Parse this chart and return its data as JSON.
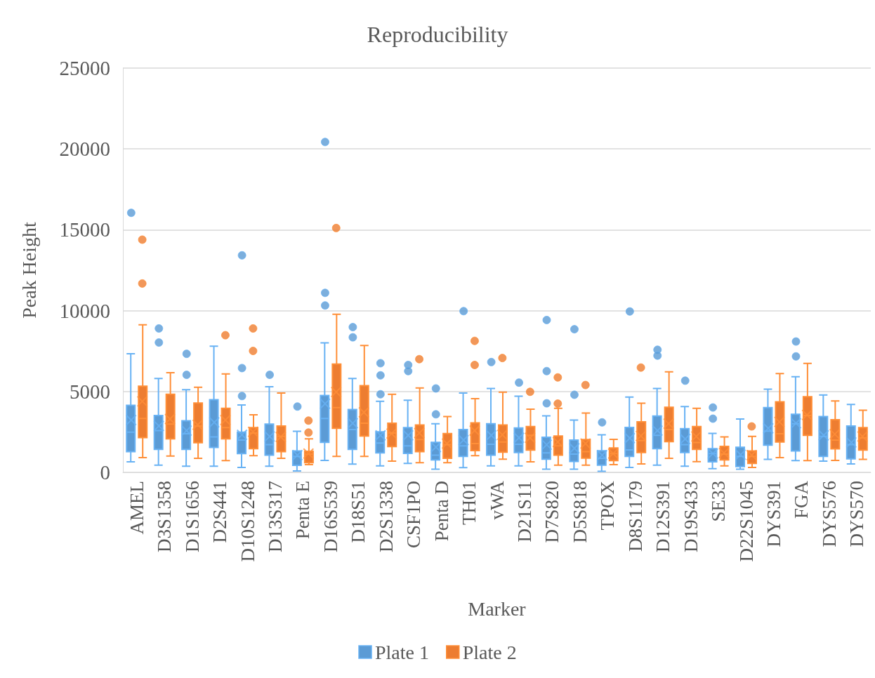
{
  "chart_data": {
    "type": "box",
    "title": "Reproducibility",
    "xlabel": "Marker",
    "ylabel": "Peak Height",
    "categories": [
      "AMEL",
      "D3S1358",
      "D1S1656",
      "D2S441",
      "D10S1248",
      "D13S317",
      "Penta E",
      "D16S539",
      "D18S51",
      "D2S1338",
      "CSF1PO",
      "Penta D",
      "TH01",
      "vWA",
      "D21S11",
      "D7S820",
      "D5S818",
      "TPOX",
      "D8S1179",
      "D12S391",
      "D19S433",
      "SE33",
      "D22S1045",
      "DYS391",
      "FGA",
      "DYS576",
      "DYS570"
    ],
    "ylim": [
      0,
      25000
    ],
    "yticks": [
      0,
      5000,
      10000,
      15000,
      20000,
      25000
    ],
    "grid": "y",
    "legend": "bottom",
    "series": [
      {
        "name": "Plate 1",
        "color": "#5b9bd5",
        "boxes": [
          {
            "low": 650,
            "q1": 1275,
            "median": 2480,
            "q3": 4140,
            "high": 7330,
            "mean": 3230,
            "outliers": [
              16050
            ]
          },
          {
            "low": 450,
            "q1": 1420,
            "median": 2580,
            "q3": 3520,
            "high": 5810,
            "mean": 2870,
            "outliers": [
              8900,
              8030
            ]
          },
          {
            "low": 380,
            "q1": 1420,
            "median": 2390,
            "q3": 3190,
            "high": 5115,
            "mean": 2580,
            "outliers": [
              7330,
              6030
            ]
          },
          {
            "low": 380,
            "q1": 1540,
            "median": 2190,
            "q3": 4490,
            "high": 7800,
            "mean": 3090
          },
          {
            "low": 300,
            "q1": 1160,
            "median": 2000,
            "q3": 2480,
            "high": 4170,
            "mean": 2320,
            "outliers": [
              13420,
              6450,
              4720
            ]
          },
          {
            "low": 380,
            "q1": 1060,
            "median": 1710,
            "q3": 2985,
            "high": 5290,
            "mean": 2220,
            "outliers": [
              6030
            ]
          },
          {
            "low": 90,
            "q1": 435,
            "median": 985,
            "q3": 1320,
            "high": 2540,
            "mean": 1060,
            "outliers": [
              4070
            ]
          },
          {
            "low": 740,
            "q1": 1855,
            "median": 3330,
            "q3": 4750,
            "high": 8010,
            "mean": 4240,
            "outliers": [
              20430,
              11100,
              10320
            ]
          },
          {
            "low": 510,
            "q1": 1420,
            "median": 2650,
            "q3": 3880,
            "high": 5800,
            "mean": 3040,
            "outliers": [
              8980,
              8350
            ]
          },
          {
            "low": 405,
            "q1": 1200,
            "median": 1810,
            "q3": 2510,
            "high": 4390,
            "mean": 2290,
            "outliers": [
              6750,
              6000,
              4830
            ]
          },
          {
            "low": 550,
            "q1": 1170,
            "median": 1640,
            "q3": 2770,
            "high": 4460,
            "mean": 2290,
            "outliers": [
              6640,
              6260
            ]
          },
          {
            "low": 190,
            "q1": 770,
            "median": 1060,
            "q3": 1855,
            "high": 3010,
            "mean": 1565,
            "outliers": [
              5190,
              3590
            ]
          },
          {
            "low": 290,
            "q1": 985,
            "median": 1640,
            "q3": 2650,
            "high": 4900,
            "mean": 2000,
            "outliers": [
              9970
            ]
          },
          {
            "low": 405,
            "q1": 1060,
            "median": 1740,
            "q3": 3010,
            "high": 5190,
            "mean": 2290,
            "outliers": [
              6820
            ]
          },
          {
            "low": 405,
            "q1": 1230,
            "median": 1740,
            "q3": 2750,
            "high": 4710,
            "mean": 2140,
            "outliers": [
              5550
            ]
          },
          {
            "low": 190,
            "q1": 810,
            "median": 1200,
            "q3": 2170,
            "high": 3490,
            "mean": 1710,
            "outliers": [
              9420,
              6260,
              4270
            ]
          },
          {
            "low": 190,
            "q1": 670,
            "median": 1130,
            "q3": 2000,
            "high": 3230,
            "mean": 1490,
            "outliers": [
              8850,
              4800
            ]
          },
          {
            "low": 70,
            "q1": 450,
            "median": 870,
            "q3": 1330,
            "high": 2320,
            "mean": 1060,
            "outliers": [
              3090
            ]
          },
          {
            "low": 305,
            "q1": 985,
            "median": 1390,
            "q3": 2780,
            "high": 4650,
            "mean": 2115,
            "outliers": [
              9950
            ]
          },
          {
            "low": 450,
            "q1": 1460,
            "median": 2290,
            "q3": 3480,
            "high": 5190,
            "mean": 2580,
            "outliers": [
              7580,
              7220
            ]
          },
          {
            "low": 375,
            "q1": 1230,
            "median": 1710,
            "q3": 2700,
            "high": 4070,
            "mean": 2060,
            "outliers": [
              5670
            ]
          },
          {
            "low": 230,
            "q1": 650,
            "median": 1160,
            "q3": 1460,
            "high": 2410,
            "mean": 1160,
            "outliers": [
              4010,
              3320
            ]
          },
          {
            "low": 190,
            "q1": 360,
            "median": 985,
            "q3": 1550,
            "high": 3300,
            "mean": 1090
          },
          {
            "low": 800,
            "q1": 1680,
            "median": 2550,
            "q3": 4000,
            "high": 5140,
            "mean": 2720
          },
          {
            "low": 725,
            "q1": 1320,
            "median": 3010,
            "q3": 3590,
            "high": 5910,
            "mean": 3040,
            "outliers": [
              8090,
              7170
            ]
          },
          {
            "low": 695,
            "q1": 985,
            "median": 2220,
            "q3": 3450,
            "high": 4780,
            "mean": 2290
          },
          {
            "low": 520,
            "q1": 840,
            "median": 1710,
            "q3": 2870,
            "high": 4200,
            "mean": 1850
          }
        ]
      },
      {
        "name": "Plate 2",
        "color": "#ed7d31",
        "boxes": [
          {
            "low": 910,
            "q1": 2145,
            "median": 3330,
            "q3": 5330,
            "high": 9130,
            "mean": 4390,
            "outliers": [
              14390,
              11680
            ]
          },
          {
            "low": 1010,
            "q1": 2070,
            "median": 2985,
            "q3": 4830,
            "high": 6160,
            "mean": 3300
          },
          {
            "low": 870,
            "q1": 1830,
            "median": 2870,
            "q3": 4290,
            "high": 5260,
            "mean": 2940
          },
          {
            "low": 725,
            "q1": 2070,
            "median": 2770,
            "q3": 3960,
            "high": 6090,
            "mean": 3230,
            "outliers": [
              8480
            ]
          },
          {
            "low": 1030,
            "q1": 1460,
            "median": 2430,
            "q3": 2770,
            "high": 3560,
            "mean": 2510,
            "outliers": [
              8900,
              7510
            ]
          },
          {
            "low": 870,
            "q1": 1275,
            "median": 2220,
            "q3": 2870,
            "high": 4900,
            "mean": 2190
          },
          {
            "low": 480,
            "q1": 595,
            "median": 1130,
            "q3": 1300,
            "high": 2070,
            "mean": 1160,
            "outliers": [
              3200,
              2460
            ]
          },
          {
            "low": 985,
            "q1": 2720,
            "median": 4000,
            "q3": 6690,
            "high": 9780,
            "mean": 4970,
            "outliers": [
              15110
            ]
          },
          {
            "low": 985,
            "q1": 2250,
            "median": 3040,
            "q3": 5360,
            "high": 7840,
            "mean": 3710
          },
          {
            "low": 695,
            "q1": 1590,
            "median": 2430,
            "q3": 3040,
            "high": 4830,
            "mean": 2400
          },
          {
            "low": 595,
            "q1": 1275,
            "median": 2030,
            "q3": 2930,
            "high": 5220,
            "mean": 2430,
            "outliers": [
              7000
            ]
          },
          {
            "low": 595,
            "q1": 870,
            "median": 1710,
            "q3": 2400,
            "high": 3450,
            "mean": 1780
          },
          {
            "low": 1030,
            "q1": 1350,
            "median": 1780,
            "q3": 3060,
            "high": 4560,
            "mean": 2580,
            "outliers": [
              8130,
              6640
            ]
          },
          {
            "low": 810,
            "q1": 1250,
            "median": 1880,
            "q3": 2930,
            "high": 4960,
            "mean": 2320,
            "outliers": [
              7070
            ]
          },
          {
            "low": 650,
            "q1": 1380,
            "median": 2290,
            "q3": 2830,
            "high": 3910,
            "mean": 2140,
            "outliers": [
              4980
            ]
          },
          {
            "low": 450,
            "q1": 1060,
            "median": 1640,
            "q3": 2250,
            "high": 3960,
            "mean": 1880,
            "outliers": [
              5870,
              4250
            ]
          },
          {
            "low": 450,
            "q1": 880,
            "median": 1275,
            "q3": 2030,
            "high": 3670,
            "mean": 1780,
            "outliers": [
              5400
            ]
          },
          {
            "low": 480,
            "q1": 725,
            "median": 1160,
            "q3": 1510,
            "high": 2040,
            "mean": 1160
          },
          {
            "low": 520,
            "q1": 1230,
            "median": 1960,
            "q3": 3120,
            "high": 4270,
            "mean": 2250,
            "outliers": [
              6480
            ]
          },
          {
            "low": 870,
            "q1": 1900,
            "median": 2650,
            "q3": 4030,
            "high": 6220,
            "mean": 3010
          },
          {
            "low": 665,
            "q1": 1420,
            "median": 1850,
            "q3": 2830,
            "high": 3960,
            "mean": 2220
          },
          {
            "low": 405,
            "q1": 770,
            "median": 1130,
            "q3": 1610,
            "high": 2190,
            "mean": 1200
          },
          {
            "low": 305,
            "q1": 550,
            "median": 985,
            "q3": 1320,
            "high": 2220,
            "mean": 1060,
            "outliers": [
              2840
            ]
          },
          {
            "low": 910,
            "q1": 1880,
            "median": 2390,
            "q3": 4360,
            "high": 6110,
            "mean": 3120
          },
          {
            "low": 725,
            "q1": 2290,
            "median": 3520,
            "q3": 4680,
            "high": 6740,
            "mean": 3550
          },
          {
            "low": 740,
            "q1": 1450,
            "median": 2000,
            "q3": 3260,
            "high": 4420,
            "mean": 2360
          },
          {
            "low": 800,
            "q1": 1380,
            "median": 2140,
            "q3": 2770,
            "high": 3840,
            "mean": 2220
          }
        ]
      }
    ]
  }
}
